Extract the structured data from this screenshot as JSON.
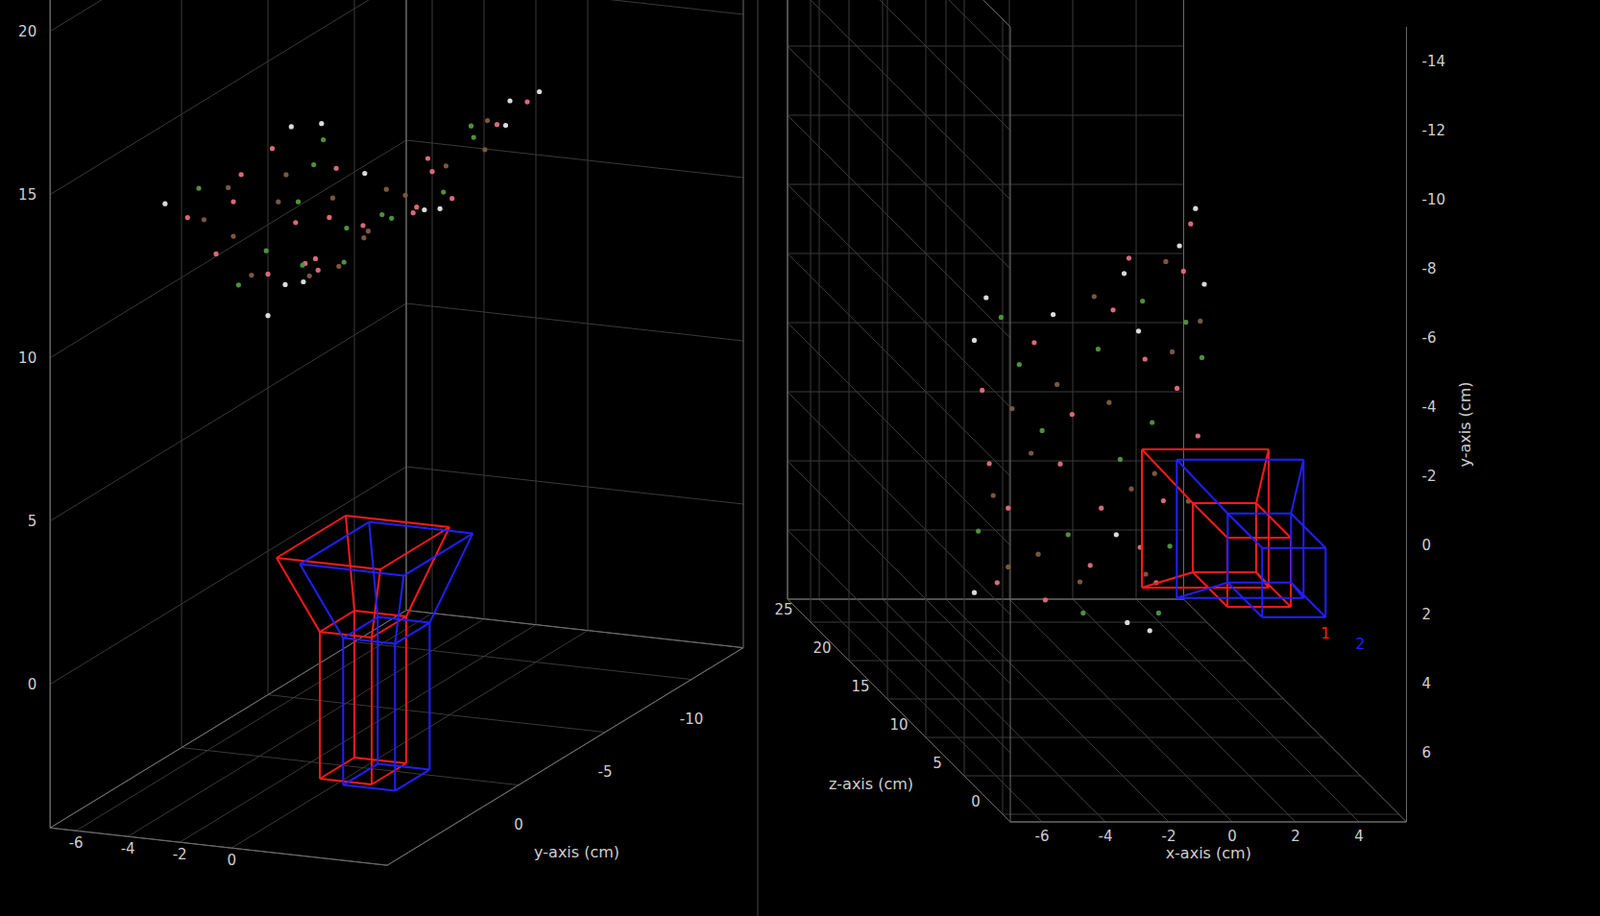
{
  "chart_data": [
    {
      "type": "scatter3d",
      "xlim": [
        -7,
        6
      ],
      "ylim": [
        -13,
        7.6
      ],
      "zlim": [
        -4.4,
        21
      ],
      "xticks": [
        -6,
        -4,
        -2,
        0
      ],
      "yticks": [
        -10,
        -5,
        0
      ],
      "zticks": [
        0,
        5,
        10,
        15,
        20
      ],
      "ylabel": "y-axis (cm)",
      "grid": true,
      "data_labels": false
    },
    {
      "type": "scatter3d",
      "xlim": [
        -7,
        5.5
      ],
      "ylim": [
        -15,
        8
      ],
      "zlim": [
        -1,
        28
      ],
      "xticks": [
        -6,
        -4,
        -2,
        0,
        2,
        4
      ],
      "yticks": [
        -14,
        -12,
        -10,
        -8,
        -6,
        -4,
        -2,
        0,
        2,
        4,
        6
      ],
      "zticks": [
        0,
        5,
        10,
        15,
        20,
        25
      ],
      "xlabel": "x-axis (cm)",
      "ylabel": "y-axis (cm)",
      "zlabel": "z-axis (cm)",
      "grid": true,
      "data_labels": true
    }
  ],
  "scene": {
    "cameras": [
      {
        "name": "1",
        "color": "#ff1a1a",
        "position": [
          0,
          0,
          0
        ]
      },
      {
        "name": "2",
        "color": "#2020ff",
        "position": [
          1.1,
          0.3,
          0
        ]
      }
    ],
    "point_cloud": [
      {
        "color": "#d9687a",
        "points": [
          [
            -4.3,
            -1.2,
            13.8
          ],
          [
            -3.6,
            2.1,
            13.3
          ],
          [
            -2.9,
            -2.8,
            12.8
          ],
          [
            -2.2,
            0.6,
            12.3
          ],
          [
            -1.4,
            3.4,
            11.7
          ],
          [
            -0.8,
            -4.1,
            11.2
          ],
          [
            -3.9,
            4.3,
            13.5
          ],
          [
            -1.9,
            -0.9,
            12.0
          ],
          [
            0.4,
            -2.5,
            12.0
          ],
          [
            1.2,
            1.8,
            12.9
          ],
          [
            2.1,
            -4.6,
            14.0
          ],
          [
            2.7,
            0.3,
            14.6
          ],
          [
            0.9,
            4.1,
            12.6
          ],
          [
            1.8,
            -1.3,
            13.6
          ],
          [
            -0.3,
            -5.6,
            11.2
          ],
          [
            -2.6,
            4.6,
            12.6
          ],
          [
            -4.1,
            0.9,
            13.7
          ],
          [
            0.2,
            2.9,
            11.8
          ],
          [
            2.4,
            -5.9,
            14.3
          ],
          [
            -1.1,
            1.7,
            11.5
          ]
        ]
      },
      {
        "color": "#4f8f3e",
        "points": [
          [
            -3.3,
            -2.1,
            13.1
          ],
          [
            -2.0,
            2.6,
            12.1
          ],
          [
            -1.2,
            -2.9,
            11.5
          ],
          [
            -4.4,
            2.9,
            13.9
          ],
          [
            -0.6,
            0.2,
            11.1
          ],
          [
            0.7,
            -0.6,
            12.3
          ],
          [
            1.5,
            3.2,
            13.3
          ],
          [
            2.2,
            -3.1,
            14.1
          ],
          [
            -2.7,
            -0.3,
            12.6
          ],
          [
            -3.8,
            -3.4,
            13.4
          ],
          [
            0.3,
            -4.2,
            11.9
          ],
          [
            1.0,
            5.0,
            12.7
          ],
          [
            2.9,
            -1.9,
            14.9
          ],
          [
            -1.6,
            4.8,
            11.8
          ]
        ]
      },
      {
        "color": "#d8dcd8",
        "points": [
          [
            -0.5,
            -5.2,
            11.0
          ],
          [
            -0.4,
            4.9,
            11.0
          ],
          [
            0.1,
            -3.4,
            11.6
          ],
          [
            -4.5,
            -2.6,
            14.0
          ],
          [
            -4.5,
            4.7,
            14.0
          ],
          [
            2.6,
            -6.3,
            14.5
          ],
          [
            1.9,
            -5.4,
            13.7
          ],
          [
            -0.7,
            2.4,
            11.2
          ],
          [
            3.0,
            -4.0,
            15.0
          ],
          [
            -2.4,
            -3.7,
            12.4
          ],
          [
            0.6,
            5.4,
            12.2
          ],
          [
            -4.2,
            -3.9,
            13.7
          ]
        ]
      },
      {
        "color": "#7a5640",
        "points": [
          [
            -3.0,
            0.4,
            12.8
          ],
          [
            -2.3,
            -1.7,
            12.3
          ],
          [
            -1.7,
            3.9,
            11.8
          ],
          [
            -3.5,
            -0.8,
            13.2
          ],
          [
            -0.9,
            -1.4,
            11.3
          ],
          [
            0.8,
            0.9,
            12.4
          ],
          [
            1.6,
            -2.4,
            13.4
          ],
          [
            2.3,
            2.1,
            14.2
          ],
          [
            -4.0,
            1.8,
            13.6
          ],
          [
            -1.3,
            -4.4,
            11.6
          ],
          [
            0.4,
            3.7,
            11.9
          ],
          [
            2.8,
            -3.0,
            14.7
          ],
          [
            -2.8,
            3.3,
            12.7
          ],
          [
            1.3,
            -5.1,
            13.0
          ],
          [
            -3.6,
            3.8,
            13.3
          ],
          [
            -0.2,
            1.1,
            11.3
          ]
        ]
      }
    ]
  }
}
